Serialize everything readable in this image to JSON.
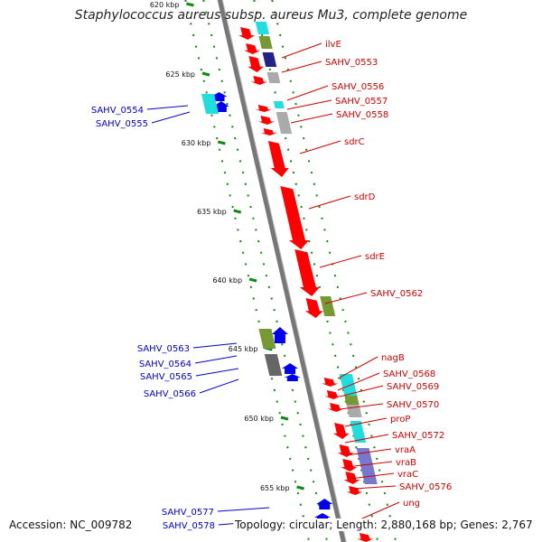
{
  "title": "Staphylococcus aureus subsp. aureus Mu3, complete genome",
  "footer": {
    "accession": "Accession: NC_009782",
    "topology": "Topology: circular; Length: 2,880,168 bp; Genes: 2,767"
  },
  "ticks": [
    "620 kbp",
    "625 kbp",
    "630 kbp",
    "635 kbp",
    "640 kbp",
    "645 kbp",
    "650 kbp",
    "655 kbp"
  ],
  "labels_forward": [
    "ilvE",
    "SAHV_0553",
    "SAHV_0556",
    "SAHV_0557",
    "SAHV_0558",
    "sdrC",
    "sdrD",
    "sdrE",
    "SAHV_0562",
    "nagB",
    "SAHV_0568",
    "SAHV_0569",
    "SAHV_0570",
    "proP",
    "SAHV_0572",
    "vraA",
    "vraB",
    "vraC",
    "SAHV_0576",
    "ung"
  ],
  "labels_reverse": [
    "SAHV_0554",
    "SAHV_0555",
    "SAHV_0563",
    "SAHV_0564",
    "SAHV_0565",
    "SAHV_0566",
    "SAHV_0577",
    "SAHV_0578"
  ],
  "colors": {
    "forward": "#ff0000",
    "reverse": "#0000ee",
    "tick": "#118811",
    "backbone": "#777777",
    "cog_cyan": "#22dddd",
    "cog_olive": "#779933",
    "cog_gray": "#aaaaaa",
    "cog_navy": "#222288"
  }
}
